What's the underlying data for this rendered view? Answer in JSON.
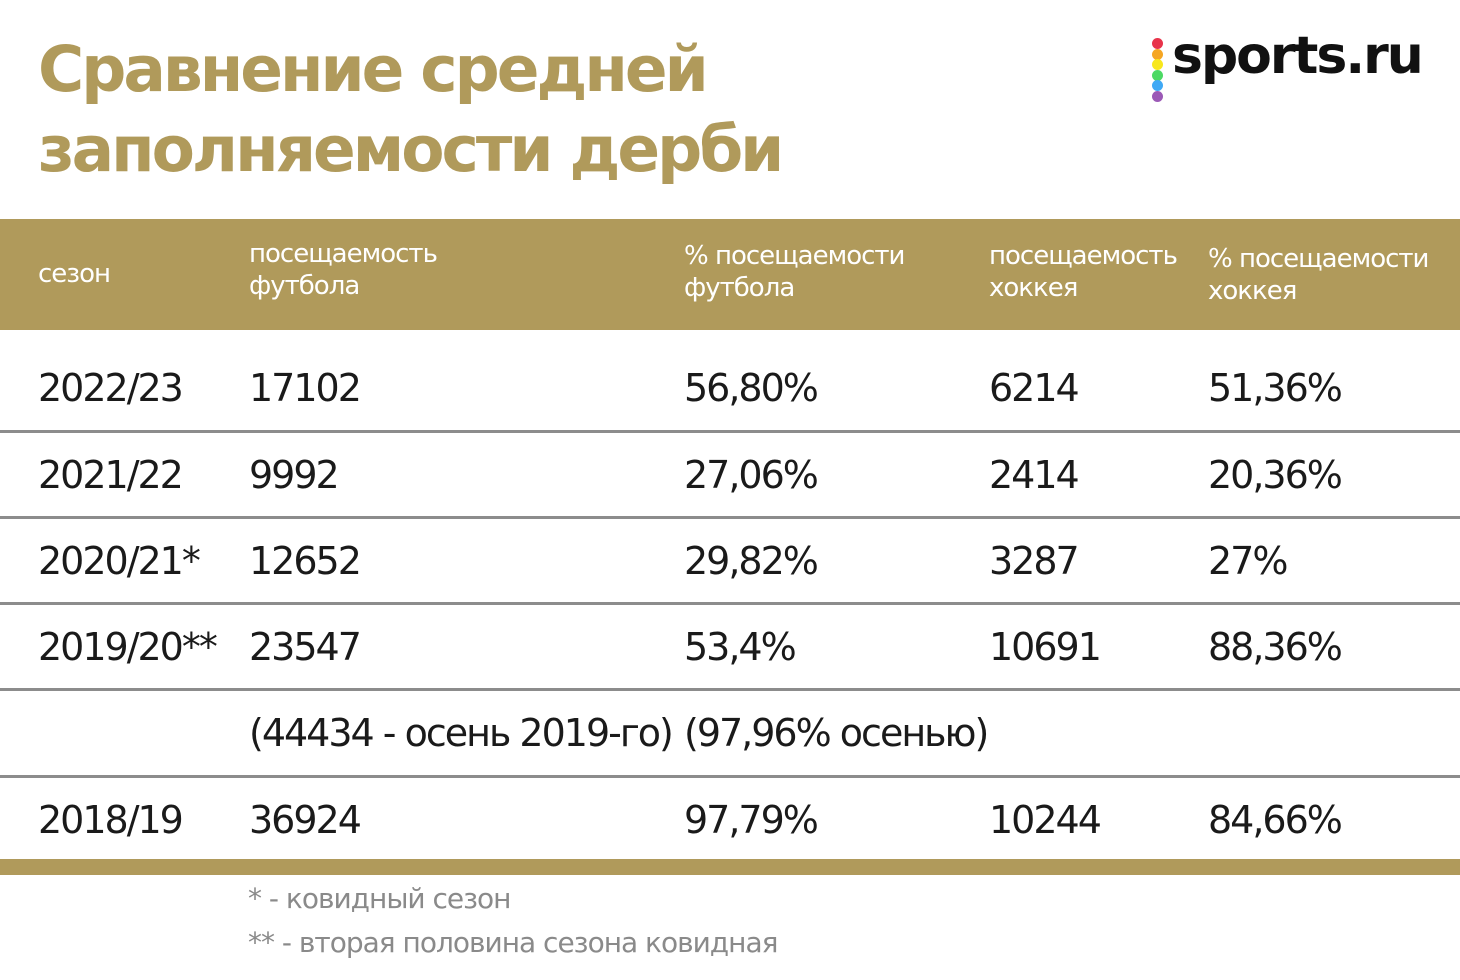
{
  "title_lines": [
    "Сравнение средней",
    "заполняемости дерби"
  ],
  "logo_text": "sports.ru",
  "logo_dot_colors": [
    "#e8334a",
    "#f5a623",
    "#f8e71c",
    "#4cd964",
    "#3fa9f5",
    "#9b59b6"
  ],
  "accent_color": "#b09a5b",
  "chart_data": {
    "type": "table",
    "title": "Сравнение средней заполняемости дерби",
    "columns": [
      "сезон",
      "посещаемость футбола",
      "% посещаемости футбола",
      "посещаемость хоккея",
      "% посещаемости хоккея"
    ],
    "header_lines": [
      [
        "сезон"
      ],
      [
        "посещаемость",
        "футбола"
      ],
      [
        "% посещаемости",
        "футбола"
      ],
      [
        "посещаемость",
        "хоккея"
      ],
      [
        "% посещаемости",
        "хоккея"
      ]
    ],
    "rows": [
      [
        "2022/23",
        "17102",
        "56,80%",
        "6214",
        "51,36%"
      ],
      [
        "2021/22",
        "9992",
        "27,06%",
        "2414",
        "20,36%"
      ],
      [
        "2020/21*",
        "12652",
        "29,82%",
        "3287",
        "27%"
      ],
      [
        "2019/20**",
        "23547",
        "53,4%",
        "10691",
        "88,36%"
      ],
      [
        "",
        "(44434 - осень 2019-го)",
        "(97,96% осенью)",
        "",
        ""
      ],
      [
        "2018/19",
        "36924",
        "97,79%",
        "10244",
        "84,66%"
      ]
    ],
    "footnotes": [
      "* - ковидный сезон",
      "** - вторая половина сезона ковидная"
    ]
  }
}
